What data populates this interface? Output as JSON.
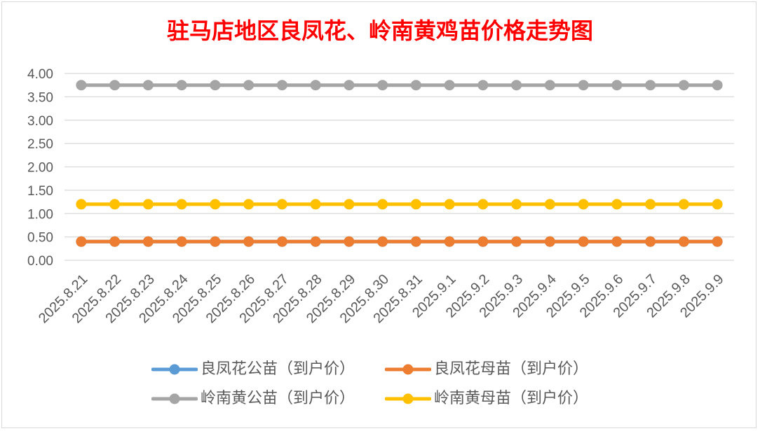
{
  "chart_data": {
    "type": "line",
    "title": "驻马店地区良凤花、岭南黄鸡苗价格走势图",
    "categories": [
      "2025.8.21",
      "2025.8.22",
      "2025.8.23",
      "2025.8.24",
      "2025.8.25",
      "2025.8.26",
      "2025.8.27",
      "2025.8.28",
      "2025.8.29",
      "2025.8.30",
      "2025.8.31",
      "2025.9.1",
      "2025.9.2",
      "2025.9.3",
      "2025.9.4",
      "2025.9.5",
      "2025.9.6",
      "2025.9.7",
      "2025.9.8",
      "2025.9.9"
    ],
    "ylim": [
      0,
      4
    ],
    "y_tick_labels": [
      "0.00",
      "0.50",
      "1.00",
      "1.50",
      "2.00",
      "2.50",
      "3.00",
      "3.50",
      "4.00"
    ],
    "grid": "horizontal",
    "legend_position": "bottom",
    "series": [
      {
        "name": "良凤花公苗（到户价）",
        "color": "#5B9BD5",
        "values": [
          0.4,
          0.4,
          0.4,
          0.4,
          0.4,
          0.4,
          0.4,
          0.4,
          0.4,
          0.4,
          0.4,
          0.4,
          0.4,
          0.4,
          0.4,
          0.4,
          0.4,
          0.4,
          0.4,
          0.4
        ]
      },
      {
        "name": "良凤花母苗（到户价）",
        "color": "#ED7D31",
        "values": [
          0.4,
          0.4,
          0.4,
          0.4,
          0.4,
          0.4,
          0.4,
          0.4,
          0.4,
          0.4,
          0.4,
          0.4,
          0.4,
          0.4,
          0.4,
          0.4,
          0.4,
          0.4,
          0.4,
          0.4
        ]
      },
      {
        "name": "岭南黄公苗（到户价）",
        "color": "#A5A5A5",
        "values": [
          3.75,
          3.75,
          3.75,
          3.75,
          3.75,
          3.75,
          3.75,
          3.75,
          3.75,
          3.75,
          3.75,
          3.75,
          3.75,
          3.75,
          3.75,
          3.75,
          3.75,
          3.75,
          3.75,
          3.75
        ]
      },
      {
        "name": "岭南黄母苗（到户价）",
        "color": "#FFC000",
        "values": [
          1.2,
          1.2,
          1.2,
          1.2,
          1.2,
          1.2,
          1.2,
          1.2,
          1.2,
          1.2,
          1.2,
          1.2,
          1.2,
          1.2,
          1.2,
          1.2,
          1.2,
          1.2,
          1.2,
          1.2
        ]
      }
    ]
  },
  "colors": {
    "title": "#FF0000",
    "axis_text": "#595959",
    "gridline": "#D9D9D9"
  }
}
